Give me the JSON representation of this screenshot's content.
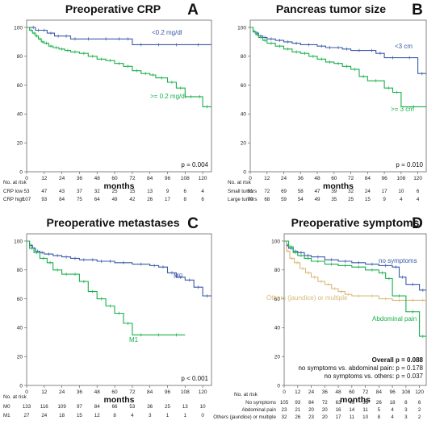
{
  "chart_data": [
    {
      "type": "line",
      "panel": "A",
      "title": "Preoperative CRP",
      "xlabel": "months",
      "ylabel": "",
      "xlim": [
        0,
        126
      ],
      "ylim": [
        0,
        105
      ],
      "x_ticks": [
        0,
        12,
        24,
        36,
        48,
        60,
        72,
        84,
        96,
        108,
        120
      ],
      "y_ticks": [
        0,
        20,
        40,
        60,
        80,
        100
      ],
      "p_text": [
        "p = 0.004"
      ],
      "series": [
        {
          "name": "<0.2 mg/dl",
          "color": "#3b5aa8",
          "x": [
            0,
            3,
            6,
            10,
            14,
            19,
            24,
            30,
            36,
            48,
            60,
            66,
            72,
            84,
            96,
            108,
            126
          ],
          "y": [
            100,
            100,
            98,
            98,
            96,
            94,
            94,
            92,
            92,
            92,
            92,
            92,
            88,
            88,
            88,
            88,
            88
          ]
        },
        {
          "name": ">= 0.2 mg/dl",
          "color": "#18b04a",
          "x": [
            0,
            2,
            4,
            6,
            8,
            10,
            12,
            15,
            18,
            22,
            26,
            30,
            36,
            42,
            48,
            54,
            60,
            66,
            72,
            78,
            84,
            88,
            96,
            102,
            108,
            116,
            120,
            126
          ],
          "y": [
            100,
            98,
            96,
            94,
            92,
            90,
            89,
            87,
            86,
            85,
            84,
            83,
            82,
            80,
            78,
            77,
            75,
            73,
            70,
            68,
            67,
            65,
            62,
            58,
            52,
            52,
            45,
            45
          ]
        }
      ],
      "risk_table": {
        "header": "No. at risk",
        "rows": [
          {
            "label": "CRP low",
            "values": [
              53,
              47,
              43,
              37,
              32,
              25,
              15,
              13,
              9,
              6,
              4
            ]
          },
          {
            "label": "CRP high",
            "values": [
              107,
              93,
              84,
              75,
              64,
              49,
              42,
              26,
              17,
              8,
              6
            ]
          }
        ]
      }
    },
    {
      "type": "line",
      "panel": "B",
      "title": "Pancreas tumor size",
      "xlabel": "months",
      "ylabel": "",
      "xlim": [
        0,
        126
      ],
      "ylim": [
        0,
        105
      ],
      "x_ticks": [
        0,
        12,
        24,
        36,
        48,
        60,
        72,
        84,
        96,
        108,
        120
      ],
      "y_ticks": [
        0,
        20,
        40,
        60,
        80,
        100
      ],
      "p_text": [
        "p = 0.010"
      ],
      "series": [
        {
          "name": "<3 cm",
          "color": "#3b5aa8",
          "x": [
            0,
            2,
            4,
            6,
            9,
            12,
            18,
            24,
            30,
            36,
            48,
            54,
            60,
            66,
            72,
            84,
            90,
            96,
            108,
            120,
            126
          ],
          "y": [
            100,
            97,
            96,
            94,
            93,
            92,
            91,
            90,
            89,
            88,
            87,
            86,
            86,
            85,
            84,
            84,
            82,
            79,
            79,
            68,
            68
          ]
        },
        {
          "name": ">= 3 cm",
          "color": "#18b04a",
          "x": [
            0,
            2,
            4,
            6,
            9,
            12,
            18,
            24,
            30,
            36,
            42,
            48,
            54,
            60,
            66,
            72,
            78,
            84,
            96,
            102,
            108,
            126
          ],
          "y": [
            100,
            97,
            95,
            93,
            91,
            89,
            87,
            85,
            83,
            82,
            80,
            78,
            76,
            75,
            73,
            71,
            66,
            63,
            58,
            55,
            45,
            45
          ]
        }
      ],
      "risk_table": {
        "header": "No. at risk",
        "rows": [
          {
            "label": "Small tumors",
            "values": [
              81,
              72,
              69,
              58,
              47,
              39,
              32,
              24,
              17,
              10,
              6
            ]
          },
          {
            "label": "Large tumors",
            "values": [
              79,
              68,
              59,
              54,
              49,
              35,
              25,
              15,
              9,
              4,
              4
            ]
          }
        ]
      }
    },
    {
      "type": "line",
      "panel": "C",
      "title": "Preoperative metastases",
      "xlabel": "months",
      "ylabel": "",
      "xlim": [
        0,
        126
      ],
      "ylim": [
        0,
        105
      ],
      "x_ticks": [
        0,
        12,
        24,
        36,
        48,
        60,
        72,
        84,
        96,
        108,
        120
      ],
      "y_ticks": [
        0,
        20,
        40,
        60,
        80,
        100
      ],
      "p_text": [
        "p < 0.001"
      ],
      "series": [
        {
          "name": "M0",
          "color": "#3b5aa8",
          "x": [
            0,
            2,
            4,
            6,
            9,
            12,
            18,
            24,
            30,
            36,
            42,
            48,
            54,
            60,
            72,
            84,
            90,
            96,
            102,
            108,
            114,
            120,
            126
          ],
          "y": [
            100,
            97,
            95,
            93,
            92,
            91,
            90,
            89,
            88,
            87,
            87,
            86,
            86,
            85,
            84,
            83,
            82,
            78,
            75,
            73,
            68,
            62,
            62
          ]
        },
        {
          "name": "M1",
          "color": "#18b04a",
          "x": [
            0,
            2,
            5,
            9,
            14,
            18,
            24,
            30,
            36,
            42,
            48,
            54,
            60,
            66,
            72,
            84,
            96,
            108
          ],
          "y": [
            100,
            95,
            92,
            88,
            85,
            80,
            77,
            77,
            72,
            65,
            60,
            55,
            50,
            43,
            35,
            35,
            35,
            35
          ]
        }
      ],
      "risk_table": {
        "header": "No. at risk",
        "rows": [
          {
            "label": "M0",
            "values": [
              133,
              116,
              109,
              97,
              84,
              66,
              53,
              36,
              25,
              13,
              10
            ]
          },
          {
            "label": "M1",
            "values": [
              27,
              24,
              18,
              15,
              12,
              8,
              4,
              3,
              1,
              1,
              0
            ]
          }
        ]
      }
    },
    {
      "type": "line",
      "panel": "D",
      "title": "Preoperative symptoms",
      "xlabel": "months",
      "ylabel": "",
      "xlim": [
        0,
        126
      ],
      "ylim": [
        0,
        105
      ],
      "x_ticks": [
        0,
        12,
        24,
        36,
        48,
        60,
        72,
        84,
        96,
        108,
        120
      ],
      "y_ticks": [
        0,
        20,
        40,
        60,
        80,
        100
      ],
      "p_text": [
        "Overall p = 0.088",
        "no symptoms vs. abdominal pain: p = 0.178",
        "no symptoms vs. others: p = 0.037"
      ],
      "series": [
        {
          "name": "no symptoms",
          "color": "#3b5aa8",
          "x": [
            0,
            2,
            4,
            8,
            12,
            18,
            24,
            36,
            48,
            60,
            72,
            84,
            96,
            102,
            108,
            120,
            126
          ],
          "y": [
            100,
            97,
            95,
            93,
            92,
            90,
            89,
            87,
            86,
            85,
            84,
            83,
            82,
            75,
            70,
            66,
            66
          ]
        },
        {
          "name": "Others (jaundice) or multiple",
          "color": "#d9b97a",
          "x": [
            0,
            2,
            5,
            9,
            14,
            19,
            24,
            30,
            36,
            42,
            48,
            54,
            60,
            72,
            84,
            96,
            108,
            120,
            126
          ],
          "y": [
            100,
            93,
            88,
            85,
            81,
            78,
            75,
            72,
            70,
            67,
            65,
            63,
            62,
            62,
            60,
            59,
            59,
            59,
            59
          ]
        },
        {
          "name": "Abdominal pain",
          "color": "#18b04a",
          "x": [
            0,
            4,
            8,
            12,
            18,
            24,
            36,
            48,
            60,
            72,
            84,
            90,
            96,
            108,
            120,
            126
          ],
          "y": [
            100,
            96,
            92,
            90,
            88,
            86,
            84,
            83,
            82,
            80,
            78,
            74,
            62,
            51,
            34,
            34
          ]
        }
      ],
      "risk_table": {
        "header": "No. at risk",
        "rows": [
          {
            "label": "No symptoms",
            "values": [
              105,
              93,
              84,
              72,
              63,
              49,
              36,
              26,
              18,
              8,
              6
            ]
          },
          {
            "label": "Abdominal pain",
            "values": [
              23,
              21,
              20,
              20,
              16,
              14,
              11,
              5,
              4,
              3,
              2
            ]
          },
          {
            "label": "Others (jaundice) or multiple",
            "values": [
              32,
              26,
              23,
              20,
              17,
              11,
              10,
              8,
              4,
              3,
              2
            ]
          }
        ]
      }
    }
  ]
}
